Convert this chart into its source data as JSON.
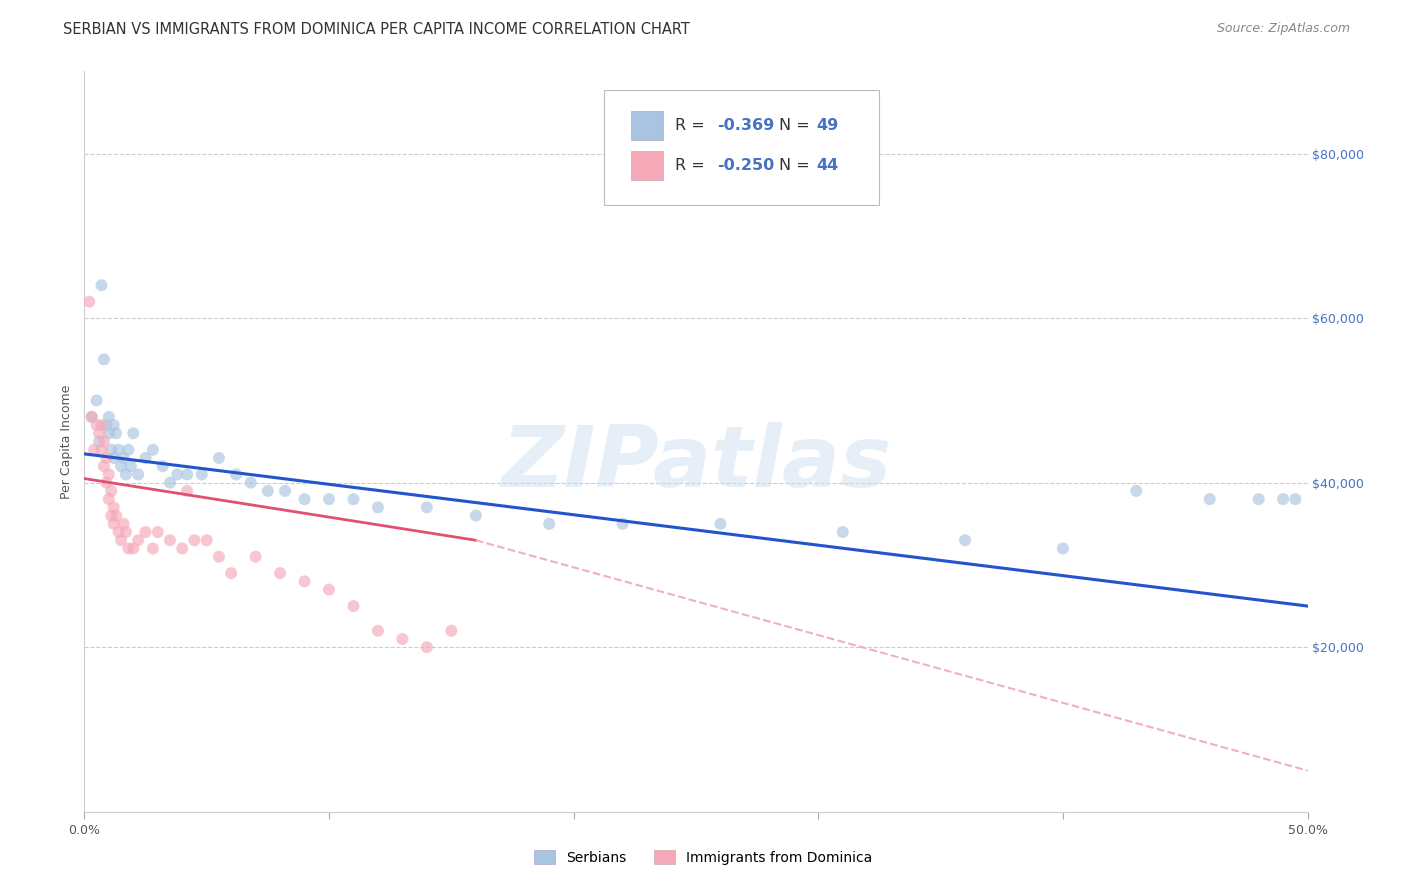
{
  "title": "SERBIAN VS IMMIGRANTS FROM DOMINICA PER CAPITA INCOME CORRELATION CHART",
  "source": "Source: ZipAtlas.com",
  "ylabel": "Per Capita Income",
  "xlim": [
    0.0,
    0.5
  ],
  "ylim": [
    0,
    90000
  ],
  "yticks": [
    20000,
    40000,
    60000,
    80000
  ],
  "ytick_labels": [
    "$20,000",
    "$40,000",
    "$60,000",
    "$80,000"
  ],
  "xticks": [
    0.0,
    0.1,
    0.2,
    0.3,
    0.4,
    0.5
  ],
  "xtick_labels": [
    "0.0%",
    "",
    "",
    "",
    "",
    "50.0%"
  ],
  "background_color": "#ffffff",
  "grid_color": "#cccccc",
  "watermark": "ZIPatlas",
  "r1": "-0.369",
  "n1": "49",
  "r2": "-0.250",
  "n2": "44",
  "serbian_color": "#a8c4e0",
  "dominica_color": "#f5a8b8",
  "serbian_line_color": "#2255cc",
  "dominica_line_solid_color": "#e05070",
  "dominica_line_dash_color": "#f0b0c0",
  "serbian_x": [
    0.003,
    0.005,
    0.006,
    0.007,
    0.008,
    0.009,
    0.01,
    0.01,
    0.011,
    0.012,
    0.012,
    0.013,
    0.014,
    0.015,
    0.016,
    0.017,
    0.018,
    0.019,
    0.02,
    0.022,
    0.025,
    0.028,
    0.032,
    0.035,
    0.038,
    0.042,
    0.048,
    0.055,
    0.062,
    0.068,
    0.075,
    0.082,
    0.09,
    0.1,
    0.11,
    0.12,
    0.14,
    0.16,
    0.19,
    0.22,
    0.26,
    0.31,
    0.36,
    0.4,
    0.43,
    0.46,
    0.48,
    0.49,
    0.495
  ],
  "serbian_y": [
    48000,
    50000,
    45000,
    64000,
    55000,
    47000,
    46000,
    48000,
    44000,
    47000,
    43000,
    46000,
    44000,
    42000,
    43000,
    41000,
    44000,
    42000,
    46000,
    41000,
    43000,
    44000,
    42000,
    40000,
    41000,
    41000,
    41000,
    43000,
    41000,
    40000,
    39000,
    39000,
    38000,
    38000,
    38000,
    37000,
    37000,
    36000,
    35000,
    35000,
    35000,
    34000,
    33000,
    32000,
    39000,
    38000,
    38000,
    38000,
    38000
  ],
  "dominica_x": [
    0.002,
    0.003,
    0.004,
    0.005,
    0.006,
    0.007,
    0.007,
    0.008,
    0.008,
    0.009,
    0.009,
    0.01,
    0.01,
    0.011,
    0.011,
    0.012,
    0.012,
    0.013,
    0.014,
    0.015,
    0.016,
    0.017,
    0.018,
    0.02,
    0.022,
    0.025,
    0.028,
    0.03,
    0.035,
    0.04,
    0.042,
    0.045,
    0.05,
    0.055,
    0.06,
    0.07,
    0.08,
    0.09,
    0.1,
    0.11,
    0.12,
    0.13,
    0.14,
    0.15
  ],
  "dominica_y": [
    62000,
    48000,
    44000,
    47000,
    46000,
    44000,
    47000,
    42000,
    45000,
    40000,
    43000,
    38000,
    41000,
    36000,
    39000,
    35000,
    37000,
    36000,
    34000,
    33000,
    35000,
    34000,
    32000,
    32000,
    33000,
    34000,
    32000,
    34000,
    33000,
    32000,
    39000,
    33000,
    33000,
    31000,
    29000,
    31000,
    29000,
    28000,
    27000,
    25000,
    22000,
    21000,
    20000,
    22000
  ],
  "title_fontsize": 10.5,
  "source_fontsize": 9,
  "axis_label_fontsize": 9,
  "tick_fontsize": 9,
  "scatter_size": 75,
  "scatter_alpha": 0.65,
  "serbian_trendline": [
    0.0,
    43500,
    0.5,
    25000
  ],
  "dominica_trendline_solid": [
    0.0,
    40500,
    0.16,
    33000
  ],
  "dominica_trendline_dash": [
    0.16,
    33000,
    0.5,
    5000
  ]
}
